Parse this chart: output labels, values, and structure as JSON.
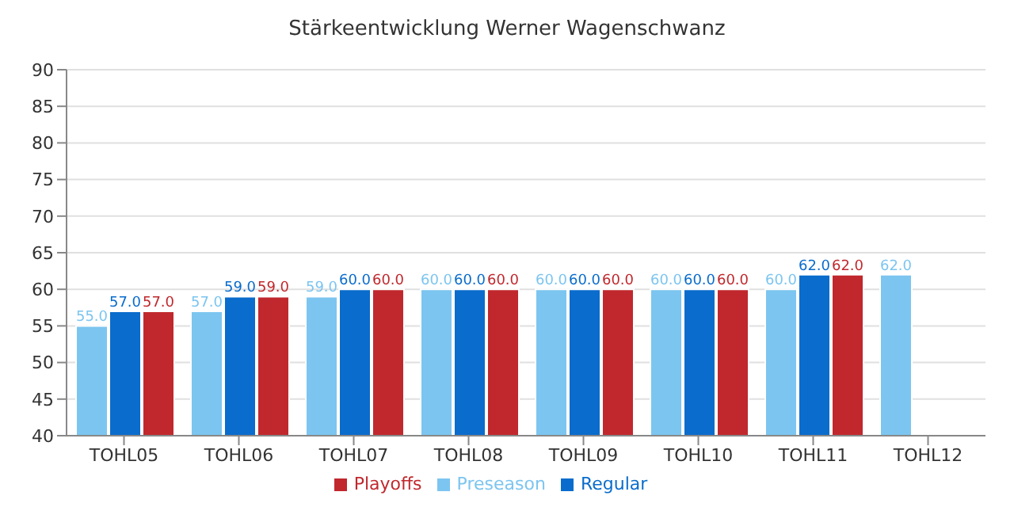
{
  "chart_data": {
    "type": "bar",
    "title": "Stärkeentwicklung Werner Wagenschwanz",
    "categories": [
      "TOHL05",
      "TOHL06",
      "TOHL07",
      "TOHL08",
      "TOHL09",
      "TOHL10",
      "TOHL11",
      "TOHL12"
    ],
    "series": [
      {
        "name": "Preseason",
        "color": "#7cc5f0",
        "values": [
          55,
          57,
          59,
          60,
          60,
          60,
          60,
          62
        ],
        "value_labels": [
          "55.0",
          "57.0",
          "59.0",
          "60.0",
          "60.0",
          "60.0",
          "60.0",
          "62.0"
        ]
      },
      {
        "name": "Regular",
        "color": "#0a6ccc",
        "values": [
          57,
          59,
          60,
          60,
          60,
          60,
          62,
          null
        ],
        "value_labels": [
          "57.0",
          "59.0",
          "60.0",
          "60.0",
          "60.0",
          "60.0",
          "62.0",
          null
        ]
      },
      {
        "name": "Playoffs",
        "color": "#c0282d",
        "values": [
          57,
          59,
          60,
          60,
          60,
          60,
          62,
          null
        ],
        "value_labels": [
          "57.0",
          "59.0",
          "60.0",
          "60.0",
          "60.0",
          "60.0",
          "62.0",
          null
        ]
      }
    ],
    "ylim": [
      40,
      90
    ],
    "yticks": [
      40,
      45,
      50,
      55,
      60,
      65,
      70,
      75,
      80,
      85,
      90
    ],
    "grid": "y",
    "legend": "bottom"
  }
}
